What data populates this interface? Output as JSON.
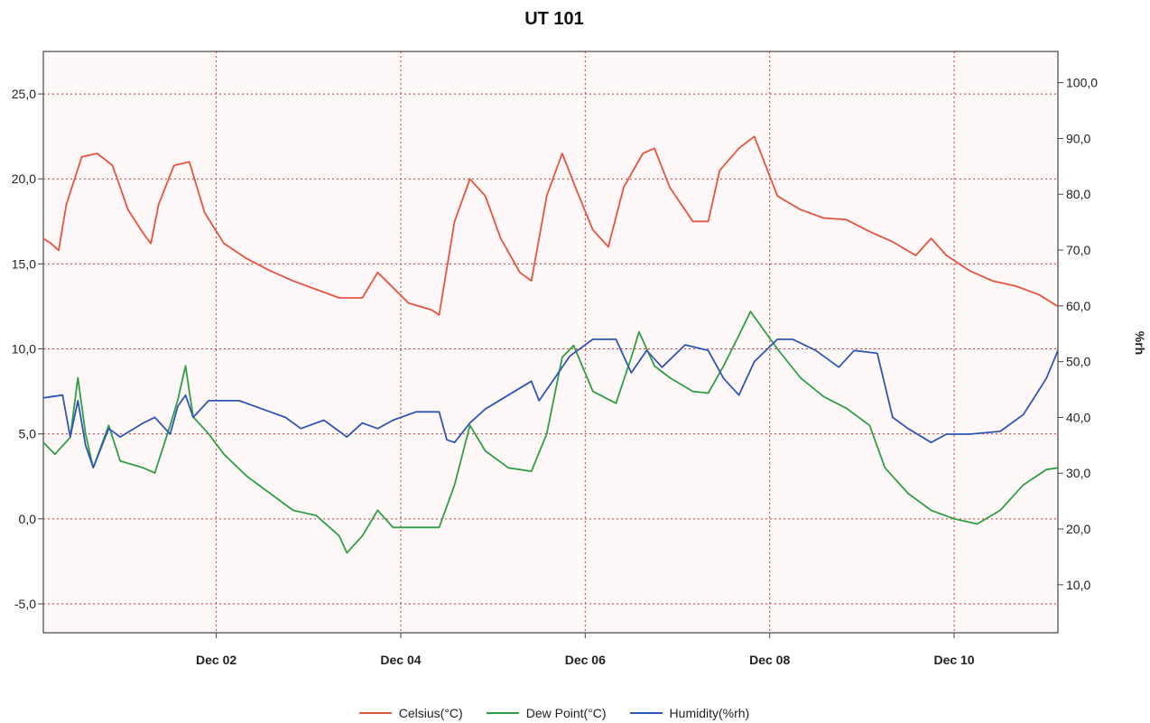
{
  "chart_data": {
    "type": "line",
    "title": "UT 101",
    "x_ticks": [
      "Dec 02",
      "Dec 04",
      "Dec 06",
      "Dec 08",
      "Dec 10"
    ],
    "xlim": [
      "Nov 30 03:00",
      "Dec 11 03:00"
    ],
    "ylabel_right": "%rh",
    "y_left": {
      "ticks": [
        "25,0",
        "20,0",
        "15,0",
        "10,0",
        "5,0",
        "0,0",
        "-5,0"
      ],
      "lim": [
        -6.7,
        27.5
      ]
    },
    "y_right": {
      "ticks": [
        "100,0",
        "90,0",
        "80,0",
        "70,0",
        "60,0",
        "50,0",
        "40,0",
        "30,0",
        "20,0",
        "10,0"
      ],
      "lim": [
        1.4,
        105.6
      ]
    },
    "grid": true,
    "legend_position": "bottom",
    "colors": {
      "Celsius": "#e8533f",
      "DewPoint": "#2ea043",
      "Humidity": "#2e56b8",
      "grid": "#c23a3a",
      "plot_bg": "#fff8f8"
    },
    "series": [
      {
        "name": "Celsius(°C)",
        "axis": "left",
        "color": "#e8533f",
        "points": [
          [
            "Nov 30 03:00",
            16.5
          ],
          [
            "Nov 30 05:00",
            16.2
          ],
          [
            "Nov 30 07:00",
            15.8
          ],
          [
            "Nov 30 09:00",
            18.5
          ],
          [
            "Nov 30 13:00",
            21.3
          ],
          [
            "Nov 30 17:00",
            21.5
          ],
          [
            "Nov 30 21:00",
            20.8
          ],
          [
            "Dec 01 01:00",
            18.2
          ],
          [
            "Dec 01 05:00",
            16.8
          ],
          [
            "Dec 01 07:00",
            16.2
          ],
          [
            "Dec 01 09:00",
            18.5
          ],
          [
            "Dec 01 13:00",
            20.8
          ],
          [
            "Dec 01 17:00",
            21.0
          ],
          [
            "Dec 01 21:00",
            18.0
          ],
          [
            "Dec 02 02:00",
            16.2
          ],
          [
            "Dec 02 08:00",
            15.3
          ],
          [
            "Dec 02 14:00",
            14.6
          ],
          [
            "Dec 02 20:00",
            14.0
          ],
          [
            "Dec 03 02:00",
            13.5
          ],
          [
            "Dec 03 08:00",
            13.0
          ],
          [
            "Dec 03 14:00",
            13.0
          ],
          [
            "Dec 03 18:00",
            14.5
          ],
          [
            "Dec 03 22:00",
            13.6
          ],
          [
            "Dec 04 02:00",
            12.7
          ],
          [
            "Dec 04 08:00",
            12.3
          ],
          [
            "Dec 04 10:00",
            12.0
          ],
          [
            "Dec 04 14:00",
            17.5
          ],
          [
            "Dec 04 18:00",
            20.0
          ],
          [
            "Dec 04 22:00",
            19.0
          ],
          [
            "Dec 05 02:00",
            16.5
          ],
          [
            "Dec 05 07:00",
            14.5
          ],
          [
            "Dec 05 10:00",
            14.0
          ],
          [
            "Dec 05 14:00",
            19.0
          ],
          [
            "Dec 05 18:00",
            21.5
          ],
          [
            "Dec 05 22:00",
            19.2
          ],
          [
            "Dec 06 02:00",
            17.0
          ],
          [
            "Dec 06 06:00",
            16.0
          ],
          [
            "Dec 06 10:00",
            19.5
          ],
          [
            "Dec 06 15:00",
            21.5
          ],
          [
            "Dec 06 18:00",
            21.8
          ],
          [
            "Dec 06 22:00",
            19.5
          ],
          [
            "Dec 07 04:00",
            17.5
          ],
          [
            "Dec 07 08:00",
            17.5
          ],
          [
            "Dec 07 11:00",
            20.5
          ],
          [
            "Dec 07 16:00",
            21.8
          ],
          [
            "Dec 07 20:00",
            22.5
          ],
          [
            "Dec 08 02:00",
            19.0
          ],
          [
            "Dec 08 08:00",
            18.2
          ],
          [
            "Dec 08 14:00",
            17.7
          ],
          [
            "Dec 08 20:00",
            17.6
          ],
          [
            "Dec 09 02:00",
            16.9
          ],
          [
            "Dec 09 08:00",
            16.3
          ],
          [
            "Dec 09 14:00",
            15.5
          ],
          [
            "Dec 09 18:00",
            16.5
          ],
          [
            "Dec 09 22:00",
            15.5
          ],
          [
            "Dec 10 04:00",
            14.6
          ],
          [
            "Dec 10 10:00",
            14.0
          ],
          [
            "Dec 10 16:00",
            13.7
          ],
          [
            "Dec 10 22:00",
            13.2
          ],
          [
            "Dec 11 03:00",
            12.5
          ]
        ]
      },
      {
        "name": "Dew Point(°C)",
        "axis": "left",
        "color": "#2ea043",
        "points": [
          [
            "Nov 30 03:00",
            4.5
          ],
          [
            "Nov 30 06:00",
            3.8
          ],
          [
            "Nov 30 10:00",
            4.8
          ],
          [
            "Nov 30 12:00",
            8.3
          ],
          [
            "Nov 30 14:00",
            5.0
          ],
          [
            "Nov 30 16:00",
            3.0
          ],
          [
            "Nov 30 20:00",
            5.5
          ],
          [
            "Nov 30 23:00",
            3.4
          ],
          [
            "Dec 01 05:00",
            3.0
          ],
          [
            "Dec 01 08:00",
            2.7
          ],
          [
            "Dec 01 12:00",
            5.5
          ],
          [
            "Dec 01 14:00",
            7.0
          ],
          [
            "Dec 01 16:00",
            9.0
          ],
          [
            "Dec 01 18:00",
            6.0
          ],
          [
            "Dec 01 22:00",
            5.0
          ],
          [
            "Dec 02 02:00",
            3.8
          ],
          [
            "Dec 02 08:00",
            2.5
          ],
          [
            "Dec 02 14:00",
            1.5
          ],
          [
            "Dec 02 20:00",
            0.5
          ],
          [
            "Dec 03 02:00",
            0.2
          ],
          [
            "Dec 03 08:00",
            -1.0
          ],
          [
            "Dec 03 10:00",
            -2.0
          ],
          [
            "Dec 03 14:00",
            -1.0
          ],
          [
            "Dec 03 18:00",
            0.5
          ],
          [
            "Dec 03 22:00",
            -0.5
          ],
          [
            "Dec 04 04:00",
            -0.5
          ],
          [
            "Dec 04 10:00",
            -0.5
          ],
          [
            "Dec 04 14:00",
            2.0
          ],
          [
            "Dec 04 18:00",
            5.5
          ],
          [
            "Dec 04 22:00",
            4.0
          ],
          [
            "Dec 05 04:00",
            3.0
          ],
          [
            "Dec 05 10:00",
            2.8
          ],
          [
            "Dec 05 14:00",
            5.0
          ],
          [
            "Dec 05 18:00",
            9.5
          ],
          [
            "Dec 05 21:00",
            10.2
          ],
          [
            "Dec 06 02:00",
            7.5
          ],
          [
            "Dec 06 08:00",
            6.8
          ],
          [
            "Dec 06 12:00",
            9.5
          ],
          [
            "Dec 06 14:00",
            11.0
          ],
          [
            "Dec 06 18:00",
            9.0
          ],
          [
            "Dec 06 22:00",
            8.3
          ],
          [
            "Dec 07 04:00",
            7.5
          ],
          [
            "Dec 07 08:00",
            7.4
          ],
          [
            "Dec 07 12:00",
            9.0
          ],
          [
            "Dec 07 16:00",
            10.8
          ],
          [
            "Dec 07 19:00",
            12.2
          ],
          [
            "Dec 08 02:00",
            10.0
          ],
          [
            "Dec 08 08:00",
            8.3
          ],
          [
            "Dec 08 14:00",
            7.2
          ],
          [
            "Dec 08 20:00",
            6.5
          ],
          [
            "Dec 09 02:00",
            5.5
          ],
          [
            "Dec 09 06:00",
            3.0
          ],
          [
            "Dec 09 12:00",
            1.5
          ],
          [
            "Dec 09 18:00",
            0.5
          ],
          [
            "Dec 10 00:00",
            0.0
          ],
          [
            "Dec 10 06:00",
            -0.3
          ],
          [
            "Dec 10 12:00",
            0.5
          ],
          [
            "Dec 10 18:00",
            2.0
          ],
          [
            "Dec 11 00:00",
            2.9
          ],
          [
            "Dec 11 03:00",
            3.0
          ]
        ]
      },
      {
        "name": "Humidity(%rh)",
        "axis": "right",
        "color": "#2e56b8",
        "points": [
          [
            "Nov 30 03:00",
            43.5
          ],
          [
            "Nov 30 08:00",
            44.0
          ],
          [
            "Nov 30 10:00",
            36.5
          ],
          [
            "Nov 30 12:00",
            43.0
          ],
          [
            "Nov 30 14:00",
            35.0
          ],
          [
            "Nov 30 16:00",
            31.0
          ],
          [
            "Nov 30 20:00",
            38.0
          ],
          [
            "Nov 30 23:00",
            36.5
          ],
          [
            "Dec 01 05:00",
            39.0
          ],
          [
            "Dec 01 08:00",
            40.0
          ],
          [
            "Dec 01 12:00",
            37.0
          ],
          [
            "Dec 01 14:00",
            42.0
          ],
          [
            "Dec 01 16:00",
            44.0
          ],
          [
            "Dec 01 18:00",
            40.0
          ],
          [
            "Dec 01 22:00",
            43.0
          ],
          [
            "Dec 02 06:00",
            43.0
          ],
          [
            "Dec 02 12:00",
            41.5
          ],
          [
            "Dec 02 18:00",
            40.0
          ],
          [
            "Dec 02 22:00",
            38.0
          ],
          [
            "Dec 03 04:00",
            39.5
          ],
          [
            "Dec 03 10:00",
            36.5
          ],
          [
            "Dec 03 14:00",
            39.0
          ],
          [
            "Dec 03 18:00",
            38.0
          ],
          [
            "Dec 03 22:00",
            39.5
          ],
          [
            "Dec 04 04:00",
            41.0
          ],
          [
            "Dec 04 10:00",
            41.0
          ],
          [
            "Dec 04 12:00",
            36.0
          ],
          [
            "Dec 04 14:00",
            35.5
          ],
          [
            "Dec 04 18:00",
            39.0
          ],
          [
            "Dec 04 22:00",
            41.5
          ],
          [
            "Dec 05 04:00",
            44.0
          ],
          [
            "Dec 05 10:00",
            46.5
          ],
          [
            "Dec 05 12:00",
            43.0
          ],
          [
            "Dec 05 16:00",
            47.0
          ],
          [
            "Dec 05 20:00",
            51.0
          ],
          [
            "Dec 06 02:00",
            54.0
          ],
          [
            "Dec 06 08:00",
            54.0
          ],
          [
            "Dec 06 12:00",
            48.0
          ],
          [
            "Dec 06 16:00",
            52.0
          ],
          [
            "Dec 06 20:00",
            49.0
          ],
          [
            "Dec 07 02:00",
            53.0
          ],
          [
            "Dec 07 08:00",
            52.0
          ],
          [
            "Dec 07 12:00",
            47.0
          ],
          [
            "Dec 07 16:00",
            44.0
          ],
          [
            "Dec 07 20:00",
            50.0
          ],
          [
            "Dec 08 02:00",
            54.0
          ],
          [
            "Dec 08 06:00",
            54.0
          ],
          [
            "Dec 08 12:00",
            52.0
          ],
          [
            "Dec 08 18:00",
            49.0
          ],
          [
            "Dec 08 22:00",
            52.0
          ],
          [
            "Dec 09 04:00",
            51.5
          ],
          [
            "Dec 09 08:00",
            40.0
          ],
          [
            "Dec 09 12:00",
            38.0
          ],
          [
            "Dec 09 18:00",
            35.5
          ],
          [
            "Dec 09 22:00",
            37.0
          ],
          [
            "Dec 10 04:00",
            37.0
          ],
          [
            "Dec 10 12:00",
            37.5
          ],
          [
            "Dec 10 18:00",
            40.5
          ],
          [
            "Dec 11 00:00",
            47.0
          ],
          [
            "Dec 11 03:00",
            52.0
          ]
        ]
      }
    ]
  }
}
